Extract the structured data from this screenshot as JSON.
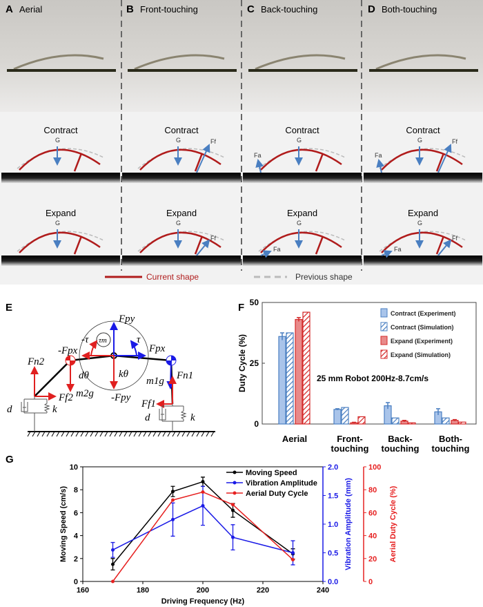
{
  "top": {
    "panels": [
      {
        "letter": "A",
        "title": "Aerial"
      },
      {
        "letter": "B",
        "title": "Front-touching"
      },
      {
        "letter": "C",
        "title": "Back-touching"
      },
      {
        "letter": "D",
        "title": "Both-touching"
      }
    ],
    "phase_contract": "Contract",
    "phase_expand": "Expand",
    "g_label": "G",
    "ff_label": "Ff",
    "fa_label": "Fa",
    "legend_current": "Current shape",
    "legend_previous": "Previous shape",
    "current_color": "#b01c1c",
    "previous_color": "#bbbbbb",
    "force_color": "#4a7fc1"
  },
  "panel_e": {
    "letter": "E",
    "labels": {
      "fpy": "Fpy",
      "neg_fpy": "-Fpy",
      "fpx": "Fpx",
      "neg_fpx": "-Fpx",
      "tau": "τ",
      "neg_tau": "-τ",
      "tau_m": "τm",
      "k_theta": "kθ",
      "d_theta": "dθ",
      "fn1": "Fn1",
      "fn2": "Fn2",
      "ff1": "Ff1",
      "ff2": "Ff2",
      "m1g": "m1g",
      "m2g": "m2g",
      "d": "d",
      "k": "k"
    }
  },
  "chart_data": [
    {
      "panel": "F",
      "type": "bar",
      "ylabel": "Duty Cycle (%)",
      "ylim": [
        0,
        50
      ],
      "yticks": [
        0,
        25,
        50
      ],
      "categories": [
        "Aerial",
        "Front-\ntouching",
        "Back-\ntouching",
        "Both-\ntouching"
      ],
      "category_lines": [
        [
          "Aerial"
        ],
        [
          "Front-",
          "touching"
        ],
        [
          "Back-",
          "touching"
        ],
        [
          "Both-",
          "touching"
        ]
      ],
      "annotation": "25 mm Robot 200Hz-8.7cm/s",
      "legend_position": "top-right",
      "series": [
        {
          "name": "Contract (Experiment)",
          "color": "#4a7fc1",
          "fill": "#a9c4ea",
          "hatched": false,
          "values": [
            36,
            6,
            7.5,
            5
          ],
          "errors": [
            1.5,
            0.3,
            1.3,
            1.3
          ]
        },
        {
          "name": "Contract (Simulation)",
          "color": "#4a7fc1",
          "fill": "#ffffff",
          "hatched": true,
          "values": [
            37.5,
            6.8,
            2.5,
            2.5
          ],
          "errors": null
        },
        {
          "name": "Expand (Experiment)",
          "color": "#d42a2a",
          "fill": "#e88a8a",
          "hatched": false,
          "values": [
            43,
            0.5,
            1.2,
            1.5
          ],
          "errors": [
            0.8,
            0.2,
            0.3,
            0.3
          ]
        },
        {
          "name": "Expand (Simulation)",
          "color": "#d42a2a",
          "fill": "#ffffff",
          "hatched": true,
          "values": [
            46,
            3,
            0.5,
            0.8
          ],
          "errors": null
        }
      ]
    },
    {
      "panel": "G",
      "type": "line",
      "xlabel": "Driving Frequency (Hz)",
      "xlim": [
        160,
        240
      ],
      "xticks": [
        160,
        180,
        200,
        220,
        240
      ],
      "x": [
        170,
        190,
        200,
        210,
        230
      ],
      "legend_position": "top-right",
      "axes": [
        {
          "label": "Moving Speed (cm/s)",
          "side": "left",
          "color": "#000000",
          "ylim": [
            0,
            10
          ],
          "yticks": [
            0,
            2,
            4,
            6,
            8,
            10
          ]
        },
        {
          "label": "Vibration Amplitude (mm)",
          "side": "right",
          "color": "#1a1ae6",
          "ylim": [
            0,
            2
          ],
          "yticks": [
            "0.0",
            "0.5",
            "1.0",
            "1.5",
            "2.0"
          ]
        },
        {
          "label": "Aerial Duty Cycle (%)",
          "side": "far-right",
          "color": "#e62020",
          "ylim": [
            0,
            100
          ],
          "yticks": [
            0,
            20,
            40,
            60,
            80,
            100
          ]
        }
      ],
      "series": [
        {
          "name": "Moving Speed",
          "axis": 0,
          "color": "#000000",
          "values": [
            1.5,
            7.85,
            8.7,
            6.2,
            2.4
          ],
          "errors": [
            0.5,
            0.45,
            0.4,
            0.6,
            0.45
          ]
        },
        {
          "name": "Vibration Amplitude",
          "axis": 1,
          "color": "#1a1ae6",
          "values": [
            0.55,
            1.08,
            1.32,
            0.77,
            0.5
          ],
          "errors": [
            0.13,
            0.29,
            0.34,
            0.22,
            0.21
          ]
        },
        {
          "name": "Aerial Duty Cycle",
          "axis": 2,
          "color": "#e62020",
          "values": [
            0,
            71,
            78,
            67,
            19
          ],
          "errors": [
            0,
            0,
            0,
            0,
            0
          ]
        }
      ]
    }
  ]
}
